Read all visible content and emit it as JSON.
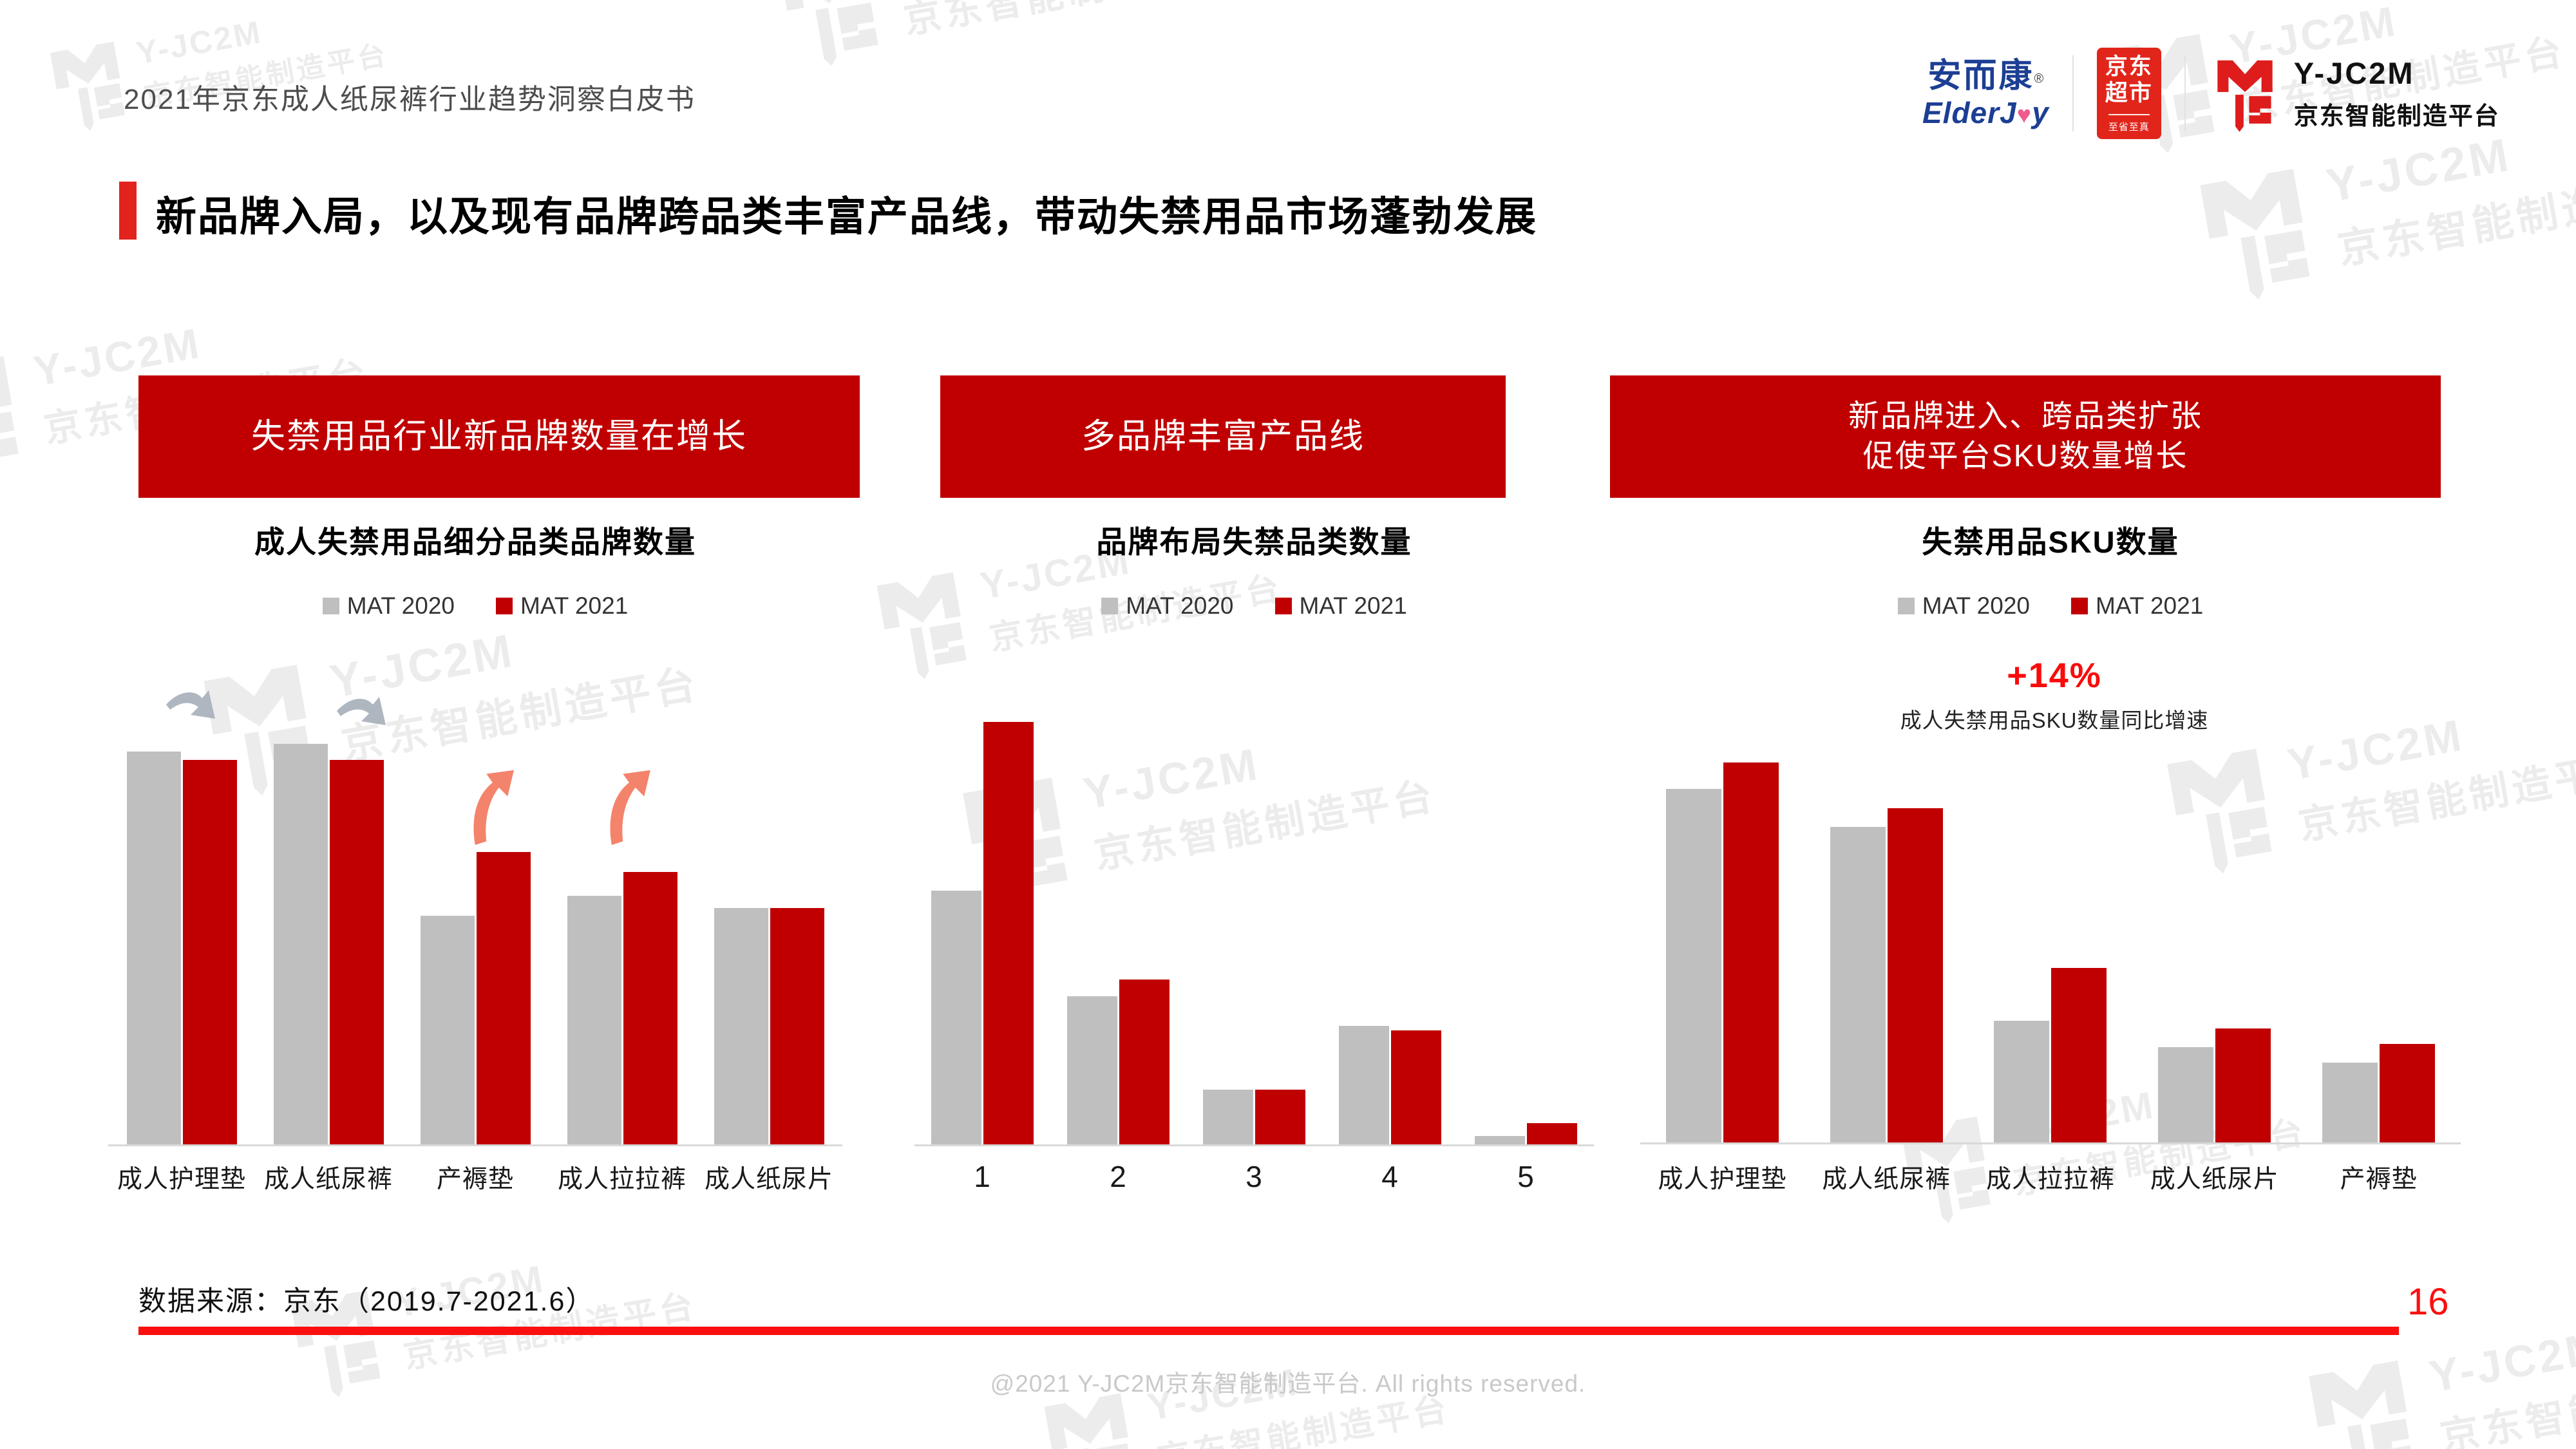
{
  "page": {
    "header_title": "2021年京东成人纸尿裤行业趋势洞察白皮书",
    "slide_title": "新品牌入局，以及现有品牌跨品类丰富产品线，带动失禁用品市场蓬勃发展",
    "page_number": "16",
    "data_source": "数据来源：京东（2019.7-2021.6）",
    "copyright": "@2021 Y-JC2M京东智能制造平台. All rights reserved."
  },
  "logos": {
    "elderjoy": {
      "cn": "安而康",
      "reg": "®",
      "en_left": "ElderJ",
      "heart": "♥",
      "en_right": "y"
    },
    "jd_supermarket": {
      "line1": "京东",
      "line2": "超市",
      "tagline": "至省至真"
    },
    "yjc2m": {
      "name": "Y-JC2M",
      "subtitle": "京东智能制造平台"
    }
  },
  "watermark": {
    "brand": "Y-JC2M",
    "subtitle": "京东智能制造平台"
  },
  "legend": {
    "mat2020": "MAT 2020",
    "mat2021": "MAT 2021"
  },
  "sections": [
    {
      "banner": "失禁用品行业新品牌数量在增长",
      "chart_title": "成人失禁用品细分品类品牌数量"
    },
    {
      "banner": "多品牌丰富产品线",
      "chart_title": "品牌布局失禁品类数量"
    },
    {
      "banner_line1": "新品牌进入、跨品类扩张",
      "banner_line2": "促使平台SKU数量增长",
      "chart_title": "失禁用品SKU数量"
    }
  ],
  "colors": {
    "bar_red": "#c00000",
    "bar_gray": "#bfbfbf",
    "bright_red": "#fb0f0f",
    "accent_red": "#e3231d",
    "arrow_gray": "#aeb6c0",
    "arrow_coral": "#f4836b",
    "jd_red": "#e1251b",
    "elderjoy_blue": "#1c3f94"
  },
  "chart_data": [
    {
      "type": "bar",
      "title": "成人失禁用品细分品类品牌数量",
      "categories": [
        "成人护理垫",
        "成人纸尿裤",
        "产褥垫",
        "成人拉拉裤",
        "成人纸尿片"
      ],
      "series": [
        {
          "name": "MAT 2020",
          "values": [
            98,
            100,
            57,
            62,
            59
          ]
        },
        {
          "name": "MAT 2021",
          "values": [
            96,
            96,
            73,
            68,
            59
          ]
        }
      ],
      "value_scale": "relative height, max=100 (no numeric axis shown)",
      "legend_position": "top",
      "grid": false,
      "trend_arrows": {
        "down_on": [
          "成人护理垫",
          "成人纸尿裤"
        ],
        "up_on": [
          "产褥垫",
          "成人拉拉裤"
        ]
      }
    },
    {
      "type": "bar",
      "title": "品牌布局失禁品类数量",
      "categories": [
        "1",
        "2",
        "3",
        "4",
        "5"
      ],
      "series": [
        {
          "name": "MAT 2020",
          "values": [
            60,
            35,
            13,
            28,
            2
          ]
        },
        {
          "name": "MAT 2021",
          "values": [
            100,
            39,
            13,
            27,
            5
          ]
        }
      ],
      "value_scale": "relative height, max=100 (no numeric axis shown)",
      "legend_position": "top",
      "grid": false
    },
    {
      "type": "bar",
      "title": "失禁用品SKU数量",
      "categories": [
        "成人护理垫",
        "成人纸尿裤",
        "成人拉拉裤",
        "成人纸尿片",
        "产褥垫"
      ],
      "series": [
        {
          "name": "MAT 2020",
          "values": [
            93,
            83,
            32,
            25,
            21
          ]
        },
        {
          "name": "MAT 2021",
          "values": [
            100,
            88,
            46,
            30,
            26
          ]
        }
      ],
      "value_scale": "relative height, max=100 (no numeric axis shown)",
      "legend_position": "top",
      "grid": false,
      "annotation": {
        "value": "+14%",
        "label": "成人失禁用品SKU数量同比增速"
      }
    }
  ]
}
